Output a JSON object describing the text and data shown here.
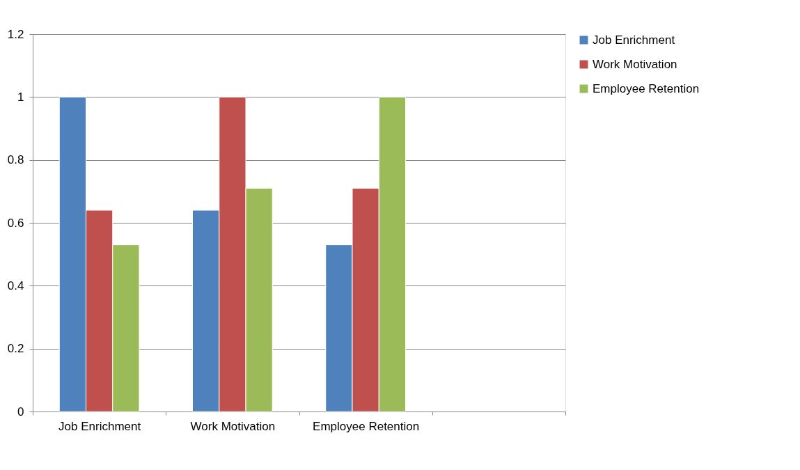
{
  "chart_data": {
    "type": "bar",
    "categories": [
      "Job Enrichment",
      "Work Motivation",
      "Employee Retention",
      null
    ],
    "series": [
      {
        "name": "Job Enrichment",
        "color": "#4f81bd",
        "values": [
          1,
          0.64,
          0.53,
          null
        ]
      },
      {
        "name": "Work Motivation",
        "color": "#c0504d",
        "values": [
          0.64,
          1,
          0.71,
          null
        ]
      },
      {
        "name": "Employee Retention",
        "color": "#9bbb59",
        "values": [
          0.53,
          0.71,
          1,
          null
        ]
      }
    ],
    "ylim": [
      0,
      1.2
    ],
    "yticks": [
      0,
      0.2,
      0.4,
      0.6,
      0.8,
      1,
      1.2
    ],
    "grid": "y",
    "legend": "right"
  }
}
